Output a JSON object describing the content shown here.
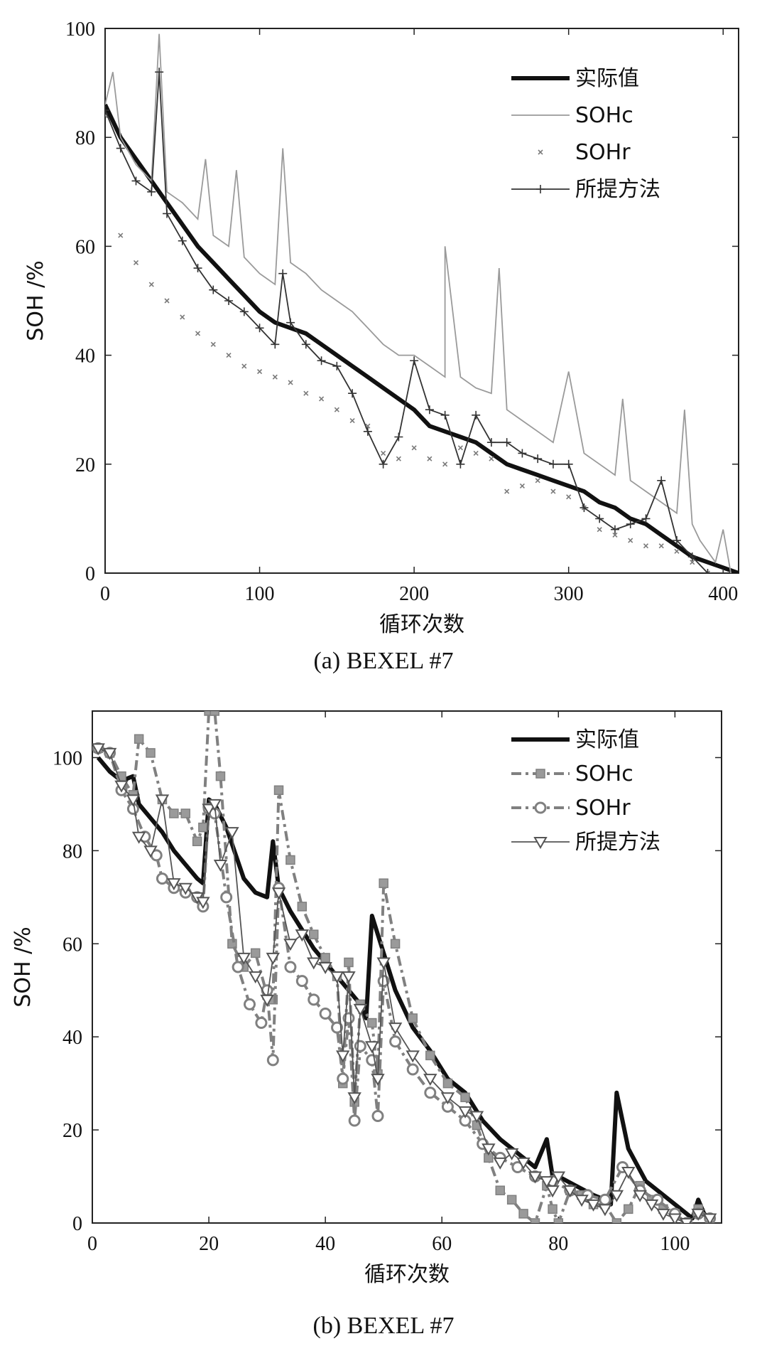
{
  "chart_data": [
    {
      "type": "line",
      "caption": "(a)  BEXEL #7",
      "xlabel": "循环次数",
      "ylabel": "SOH /%",
      "xlim": [
        0,
        410
      ],
      "ylim": [
        0,
        100
      ],
      "xticks": [
        0,
        100,
        200,
        300,
        400
      ],
      "yticks": [
        0,
        20,
        40,
        60,
        80,
        100
      ],
      "grid": false,
      "legend_position": "top-right",
      "series": [
        {
          "name": "实际值",
          "style": "thick-line",
          "color": "#111111",
          "x": [
            0,
            10,
            20,
            30,
            40,
            50,
            60,
            70,
            80,
            90,
            100,
            110,
            120,
            130,
            140,
            150,
            160,
            170,
            180,
            190,
            200,
            210,
            220,
            230,
            240,
            250,
            260,
            270,
            280,
            290,
            300,
            310,
            320,
            330,
            340,
            350,
            360,
            370,
            380,
            390,
            400,
            410
          ],
          "values": [
            86,
            80,
            76,
            72,
            68,
            64,
            60,
            57,
            54,
            51,
            48,
            46,
            45,
            44,
            42,
            40,
            38,
            36,
            34,
            32,
            30,
            27,
            26,
            25,
            24,
            22,
            20,
            19,
            18,
            17,
            16,
            15,
            13,
            12,
            10,
            9,
            7,
            5,
            3,
            2,
            1,
            0
          ]
        },
        {
          "name": "SOHc",
          "style": "thin-line",
          "color": "#9a9a9a",
          "x": [
            0,
            5,
            10,
            20,
            30,
            35,
            40,
            50,
            60,
            65,
            70,
            80,
            85,
            90,
            100,
            110,
            115,
            120,
            130,
            140,
            150,
            160,
            170,
            180,
            190,
            200,
            210,
            220,
            220,
            230,
            240,
            250,
            255,
            260,
            270,
            280,
            290,
            300,
            310,
            320,
            330,
            335,
            340,
            350,
            360,
            370,
            375,
            380,
            385,
            390,
            395,
            400,
            405
          ],
          "values": [
            86,
            92,
            80,
            75,
            72,
            99,
            70,
            68,
            65,
            76,
            62,
            60,
            74,
            58,
            55,
            53,
            78,
            57,
            55,
            52,
            50,
            48,
            45,
            42,
            40,
            40,
            38,
            36,
            60,
            36,
            34,
            33,
            56,
            30,
            28,
            26,
            24,
            37,
            22,
            20,
            18,
            32,
            17,
            15,
            13,
            11,
            30,
            9,
            6,
            4,
            2,
            8,
            0
          ]
        },
        {
          "name": "SOHr",
          "style": "dots",
          "color": "#7a7a7a",
          "x": [
            0,
            10,
            20,
            30,
            40,
            50,
            60,
            70,
            80,
            90,
            100,
            110,
            120,
            130,
            140,
            150,
            160,
            170,
            180,
            190,
            200,
            210,
            220,
            230,
            240,
            250,
            260,
            270,
            280,
            290,
            300,
            310,
            320,
            330,
            340,
            350,
            360,
            370,
            380,
            390
          ],
          "values": [
            84,
            62,
            57,
            53,
            50,
            47,
            44,
            42,
            40,
            38,
            37,
            36,
            35,
            33,
            32,
            30,
            28,
            27,
            22,
            21,
            23,
            21,
            20,
            23,
            22,
            21,
            15,
            16,
            17,
            15,
            14,
            12,
            8,
            7,
            6,
            5,
            5,
            4,
            2,
            0
          ]
        },
        {
          "name": "所提方法",
          "style": "line-plus",
          "color": "#333333",
          "x": [
            0,
            10,
            20,
            30,
            35,
            40,
            50,
            60,
            70,
            80,
            90,
            100,
            110,
            115,
            120,
            130,
            140,
            150,
            160,
            170,
            180,
            190,
            200,
            210,
            220,
            230,
            240,
            250,
            260,
            270,
            280,
            290,
            300,
            310,
            320,
            330,
            340,
            350,
            360,
            370,
            380,
            390,
            400
          ],
          "values": [
            85,
            78,
            72,
            70,
            92,
            66,
            61,
            56,
            52,
            50,
            48,
            45,
            42,
            55,
            46,
            42,
            39,
            38,
            33,
            26,
            20,
            25,
            39,
            30,
            29,
            20,
            29,
            24,
            24,
            22,
            21,
            20,
            20,
            12,
            10,
            8,
            9,
            10,
            17,
            6,
            3,
            0,
            0
          ]
        }
      ]
    },
    {
      "type": "line",
      "caption": "(b)  BEXEL #7",
      "xlabel": "循环次数",
      "ylabel": "SOH /%",
      "xlim": [
        0,
        108
      ],
      "ylim": [
        0,
        110
      ],
      "xticks": [
        0,
        20,
        40,
        60,
        80,
        100
      ],
      "yticks": [
        0,
        20,
        40,
        60,
        80,
        100
      ],
      "grid": false,
      "legend_position": "top-right",
      "series": [
        {
          "name": "实际值",
          "style": "thick-line",
          "color": "#111111",
          "x": [
            1,
            3,
            5,
            7,
            8,
            10,
            12,
            14,
            16,
            18,
            19,
            20,
            21,
            23,
            26,
            28,
            30,
            31,
            32,
            34,
            36,
            38,
            40,
            42,
            44,
            46,
            47,
            48,
            50,
            52,
            55,
            58,
            61,
            64,
            67,
            70,
            73,
            76,
            78,
            79,
            80,
            83,
            86,
            88,
            89,
            90,
            92,
            95,
            98,
            101,
            103,
            104,
            105,
            106
          ],
          "values": [
            100,
            97,
            95,
            96,
            90,
            87,
            84,
            80,
            77,
            74,
            73,
            91,
            90,
            85,
            74,
            71,
            70,
            82,
            72,
            67,
            63,
            59,
            56,
            53,
            50,
            47,
            44,
            66,
            58,
            50,
            42,
            37,
            31,
            28,
            22,
            18,
            15,
            12,
            18,
            10,
            10,
            8,
            6,
            5,
            4,
            28,
            16,
            9,
            6,
            3,
            1,
            5,
            2,
            1
          ]
        },
        {
          "name": "SOHc",
          "style": "dash-dot-square",
          "color": "#808080",
          "x": [
            1,
            3,
            5,
            7,
            8,
            10,
            12,
            14,
            16,
            18,
            19,
            20,
            21,
            22,
            24,
            26,
            28,
            30,
            31,
            32,
            34,
            36,
            38,
            40,
            42,
            43,
            44,
            45,
            46,
            48,
            49,
            50,
            52,
            55,
            58,
            61,
            64,
            66,
            68,
            70,
            72,
            74,
            76,
            78,
            79,
            80,
            82,
            84,
            86,
            88,
            90,
            92,
            94,
            96,
            98,
            100,
            102,
            104,
            106
          ],
          "values": [
            102,
            101,
            96,
            92,
            104,
            101,
            91,
            88,
            88,
            82,
            85,
            110,
            110,
            96,
            60,
            55,
            58,
            49,
            48,
            93,
            78,
            68,
            62,
            57,
            53,
            30,
            56,
            26,
            47,
            43,
            32,
            73,
            60,
            44,
            36,
            30,
            27,
            21,
            14,
            7,
            5,
            2,
            0,
            8,
            3,
            0,
            7,
            6,
            4,
            4,
            0,
            3,
            8,
            5,
            3,
            2,
            0,
            3,
            1
          ]
        },
        {
          "name": "SOHr",
          "style": "dash-dot-circle",
          "color": "#808080",
          "x": [
            1,
            3,
            5,
            7,
            9,
            11,
            12,
            14,
            16,
            18,
            19,
            20,
            21,
            23,
            25,
            27,
            29,
            30,
            31,
            32,
            34,
            36,
            38,
            40,
            42,
            43,
            44,
            45,
            46,
            48,
            49,
            50,
            52,
            55,
            58,
            61,
            64,
            67,
            70,
            73,
            76,
            79,
            82,
            85,
            88,
            91,
            94,
            97,
            100,
            102,
            104,
            106
          ],
          "values": [
            102,
            101,
            93,
            89,
            83,
            79,
            74,
            72,
            71,
            70,
            68,
            89,
            88,
            70,
            55,
            47,
            43,
            50,
            35,
            72,
            55,
            52,
            48,
            45,
            42,
            31,
            44,
            22,
            38,
            35,
            23,
            52,
            39,
            33,
            28,
            25,
            22,
            17,
            14,
            12,
            10,
            9,
            7,
            6,
            5,
            12,
            7,
            5,
            2,
            0,
            2,
            1
          ]
        },
        {
          "name": "所提方法",
          "style": "line-triangle",
          "color": "#555555",
          "x": [
            1,
            3,
            5,
            7,
            8,
            10,
            12,
            14,
            16,
            18,
            19,
            20,
            21,
            22,
            24,
            26,
            28,
            30,
            31,
            32,
            34,
            36,
            38,
            40,
            42,
            43,
            44,
            45,
            46,
            48,
            49,
            50,
            52,
            55,
            58,
            61,
            64,
            66,
            68,
            70,
            72,
            74,
            76,
            78,
            79,
            80,
            82,
            84,
            86,
            88,
            90,
            92,
            94,
            96,
            98,
            100,
            102,
            104,
            106
          ],
          "values": [
            102,
            101,
            94,
            91,
            83,
            80,
            91,
            73,
            72,
            70,
            69,
            89,
            90,
            77,
            84,
            57,
            53,
            48,
            57,
            71,
            60,
            62,
            56,
            55,
            53,
            36,
            53,
            27,
            46,
            38,
            31,
            56,
            42,
            36,
            31,
            27,
            24,
            23,
            16,
            13,
            15,
            13,
            10,
            9,
            7,
            10,
            7,
            5,
            4,
            3,
            6,
            11,
            6,
            4,
            2,
            1,
            0,
            2,
            1
          ]
        }
      ]
    }
  ]
}
